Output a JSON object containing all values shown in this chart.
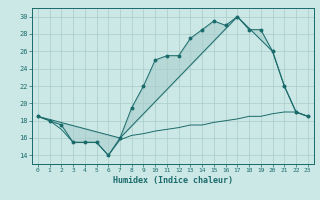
{
  "xlabel": "Humidex (Indice chaleur)",
  "background_color": "#cce8e6",
  "grid_color": "#aaccca",
  "line_color": "#1a6b6b",
  "ylim": [
    13,
    31
  ],
  "xlim": [
    -0.5,
    23.5
  ],
  "yticks": [
    14,
    16,
    18,
    20,
    22,
    24,
    26,
    28,
    30
  ],
  "xticks": [
    0,
    1,
    2,
    3,
    4,
    5,
    6,
    7,
    8,
    9,
    10,
    11,
    12,
    13,
    14,
    15,
    16,
    17,
    18,
    19,
    20,
    21,
    22,
    23
  ],
  "line1_x": [
    0,
    1,
    2,
    3,
    4,
    5,
    6,
    7,
    8,
    9,
    10,
    11,
    12,
    13,
    14,
    15,
    16,
    17,
    18,
    19,
    20,
    21,
    22,
    23
  ],
  "line1_y": [
    18.5,
    18.0,
    17.5,
    15.5,
    15.5,
    15.5,
    14.0,
    16.0,
    19.5,
    22.0,
    25.0,
    25.5,
    25.5,
    27.5,
    28.5,
    29.5,
    29.0,
    30.0,
    28.5,
    28.5,
    26.0,
    22.0,
    19.0,
    18.5
  ],
  "line2_x": [
    0,
    7,
    17,
    20,
    21,
    22,
    23
  ],
  "line2_y": [
    18.5,
    16.0,
    30.0,
    26.0,
    22.0,
    19.0,
    18.5
  ],
  "line3_x": [
    0,
    1,
    2,
    3,
    4,
    5,
    6,
    7,
    8,
    9,
    10,
    11,
    12,
    13,
    14,
    15,
    16,
    17,
    18,
    19,
    20,
    21,
    22,
    23
  ],
  "line3_y": [
    18.5,
    18.0,
    17.0,
    15.5,
    15.5,
    15.5,
    14.0,
    15.8,
    16.3,
    16.5,
    16.8,
    17.0,
    17.2,
    17.5,
    17.5,
    17.8,
    18.0,
    18.2,
    18.5,
    18.5,
    18.8,
    19.0,
    19.0,
    18.5
  ]
}
